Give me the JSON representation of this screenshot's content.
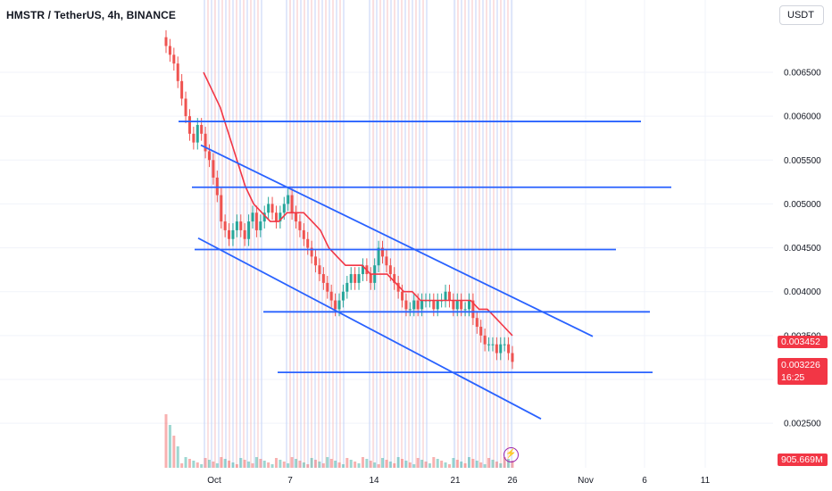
{
  "header": {
    "title": "HMSTR / TetherUS, 4h, BINANCE"
  },
  "currency_button": {
    "label": "USDT"
  },
  "price_axis": {
    "ticks": [
      "0.006500",
      "0.006000",
      "0.005500",
      "0.005000",
      "0.004500",
      "0.004000",
      "0.003500",
      "0.003000",
      "0.002500"
    ]
  },
  "price_tags": {
    "ma_value": "0.003452",
    "last_price": "0.003226",
    "countdown": "16:25",
    "volume": "905.669M"
  },
  "time_axis": {
    "ticks": [
      "Oct",
      "7",
      "14",
      "21",
      "26",
      "Nov",
      "6",
      "11"
    ]
  },
  "icons": {
    "flash": "lightning-icon"
  },
  "colors": {
    "trendline": "#2962ff",
    "moving_average": "#f23645",
    "candle_up": "#26a69a",
    "candle_down": "#ef5350",
    "session_blue": "#c9d6f7",
    "session_red": "#f7c9c9"
  },
  "chart_data": {
    "type": "candlestick",
    "title": "HMSTR / TetherUS, 4h, BINANCE",
    "ylim": [
      0.00227,
      0.00698
    ],
    "y_ticks": [
      0.0065,
      0.006,
      0.0055,
      0.005,
      0.0045,
      0.004,
      0.0035,
      0.003,
      0.0025
    ],
    "x_ticks": [
      "Oct",
      "7",
      "14",
      "21",
      "26",
      "Nov",
      "6",
      "11"
    ],
    "grid": true,
    "moving_average_last": 0.003452,
    "last_price": 0.003226,
    "volume_last": "905.669M",
    "close_series": [
      0.0068,
      0.0067,
      0.0066,
      0.0064,
      0.0062,
      0.006,
      0.0058,
      0.0057,
      0.0059,
      0.0058,
      0.0056,
      0.0055,
      0.0053,
      0.0051,
      0.0048,
      0.0047,
      0.0046,
      0.0047,
      0.0048,
      0.0047,
      0.0046,
      0.0048,
      0.0049,
      0.0047,
      0.0048,
      0.0049,
      0.005,
      0.0049,
      0.0048,
      0.0049,
      0.005,
      0.0051,
      0.0049,
      0.0048,
      0.0047,
      0.0046,
      0.0045,
      0.0044,
      0.0043,
      0.0042,
      0.0041,
      0.004,
      0.0039,
      0.0038,
      0.0039,
      0.004,
      0.0041,
      0.0042,
      0.0041,
      0.0042,
      0.0043,
      0.0042,
      0.0041,
      0.0043,
      0.0045,
      0.0044,
      0.0043,
      0.0042,
      0.0041,
      0.004,
      0.0039,
      0.0038,
      0.0038,
      0.0039,
      0.0038,
      0.0039,
      0.0039,
      0.0039,
      0.0038,
      0.0039,
      0.0039,
      0.004,
      0.0039,
      0.0038,
      0.0039,
      0.0038,
      0.0038,
      0.0039,
      0.0037,
      0.0036,
      0.0035,
      0.0034,
      0.0034,
      0.0034,
      0.0033,
      0.0034,
      0.0034,
      0.0033,
      0.0032
    ],
    "moving_average": [
      0.0065,
      0.0063,
      0.0061,
      0.0058,
      0.0055,
      0.0052,
      0.005,
      0.0049,
      0.0048,
      0.0048,
      0.0049,
      0.0049,
      0.0049,
      0.0048,
      0.0047,
      0.0045,
      0.0044,
      0.0043,
      0.0043,
      0.0043,
      0.0042,
      0.0042,
      0.0042,
      0.0041,
      0.004,
      0.004,
      0.0039,
      0.0039,
      0.0039,
      0.0039,
      0.0039,
      0.0039,
      0.0039,
      0.0038,
      0.0038,
      0.0037,
      0.0036,
      0.0035
    ],
    "trend_lines": [
      {
        "role": "horizontal resistance",
        "y": 0.00594
      },
      {
        "role": "horizontal resistance",
        "y": 0.00519
      },
      {
        "role": "horizontal support",
        "y": 0.00448
      },
      {
        "role": "horizontal support",
        "y": 0.00377
      },
      {
        "role": "horizontal support",
        "y": 0.00308
      },
      {
        "role": "upper channel",
        "from": 0.00567,
        "to": 0.00349
      },
      {
        "role": "lower channel",
        "from": 0.00461,
        "to": 0.00255
      }
    ]
  }
}
